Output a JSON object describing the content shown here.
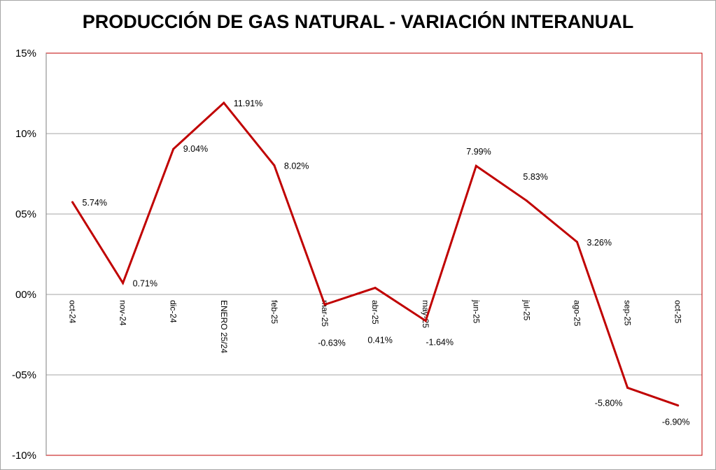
{
  "chart_data": {
    "type": "line",
    "title": "PRODUCCIÓN DE GAS NATURAL - VARIACIÓN INTERANUAL",
    "xlabel": "",
    "ylabel": "",
    "categories": [
      "oct-24",
      "nov-24",
      "dic-24",
      "ENERO 25/24",
      "feb-25",
      "mar-25",
      "abr-25",
      "may-25",
      "jun-25",
      "jul-25",
      "ago-25",
      "sep-25",
      "oct-25"
    ],
    "series": [
      {
        "values": [
          5.74,
          0.71,
          9.04,
          11.91,
          8.02,
          -0.63,
          0.41,
          -1.64,
          7.99,
          5.83,
          3.26,
          -5.8,
          -6.9
        ],
        "labels": [
          "5.74%",
          "0.71%",
          "9.04%",
          "11.91%",
          "8.02%",
          "-0.63%",
          "0.41%",
          "-1.64%",
          "7.99%",
          "5.83%",
          "3.26%",
          "-5.80%",
          "-6.90%"
        ],
        "color": "#c00000"
      }
    ],
    "ylim": [
      -10,
      15
    ],
    "yticks": [
      -10,
      -5,
      0,
      5,
      10,
      15
    ],
    "ytick_labels": [
      "-10%",
      "-05%",
      "00%",
      "05%",
      "10%",
      "15%"
    ],
    "grid": true,
    "legend": "none",
    "colors": {
      "line": "#c00000",
      "plot_border": "#c00000",
      "grid": "#a6a6a6"
    }
  }
}
